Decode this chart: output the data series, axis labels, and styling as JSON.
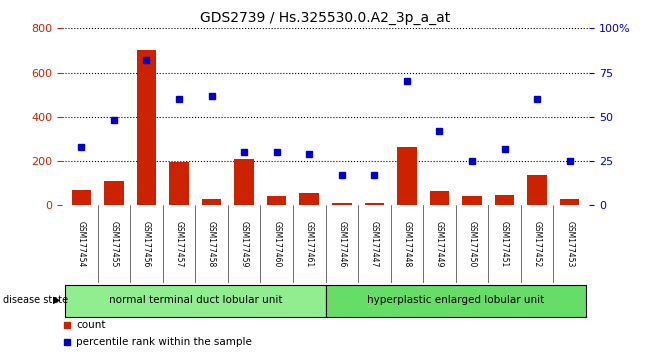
{
  "title": "GDS2739 / Hs.325530.0.A2_3p_a_at",
  "samples": [
    "GSM177454",
    "GSM177455",
    "GSM177456",
    "GSM177457",
    "GSM177458",
    "GSM177459",
    "GSM177460",
    "GSM177461",
    "GSM177446",
    "GSM177447",
    "GSM177448",
    "GSM177449",
    "GSM177450",
    "GSM177451",
    "GSM177452",
    "GSM177453"
  ],
  "counts": [
    70,
    110,
    700,
    195,
    30,
    210,
    40,
    55,
    10,
    10,
    265,
    65,
    40,
    45,
    135,
    30
  ],
  "percentiles": [
    33,
    48,
    82,
    60,
    62,
    30,
    30,
    29,
    17,
    17,
    70,
    42,
    25,
    32,
    60,
    25
  ],
  "group1_label": "normal terminal duct lobular unit",
  "group1_count": 8,
  "group2_label": "hyperplastic enlarged lobular unit",
  "group2_count": 8,
  "group1_color": "#90EE90",
  "group2_color": "#66DD66",
  "bar_color": "#CC2200",
  "dot_color": "#0000CC",
  "left_axis_color": "#CC2200",
  "right_axis_color": "#0000CC",
  "left_ylim": [
    0,
    800
  ],
  "right_ylim": [
    0,
    100
  ],
  "left_yticks": [
    0,
    200,
    400,
    600,
    800
  ],
  "right_yticks": [
    0,
    25,
    50,
    75,
    100
  ],
  "right_yticklabels": [
    "0",
    "25",
    "50",
    "75",
    "100%"
  ],
  "legend_count_label": "count",
  "legend_pct_label": "percentile rank within the sample",
  "disease_state_label": "disease state",
  "xticklabel_bg": "#cccccc",
  "gridline_color": "black",
  "gridline_style": "dotted"
}
